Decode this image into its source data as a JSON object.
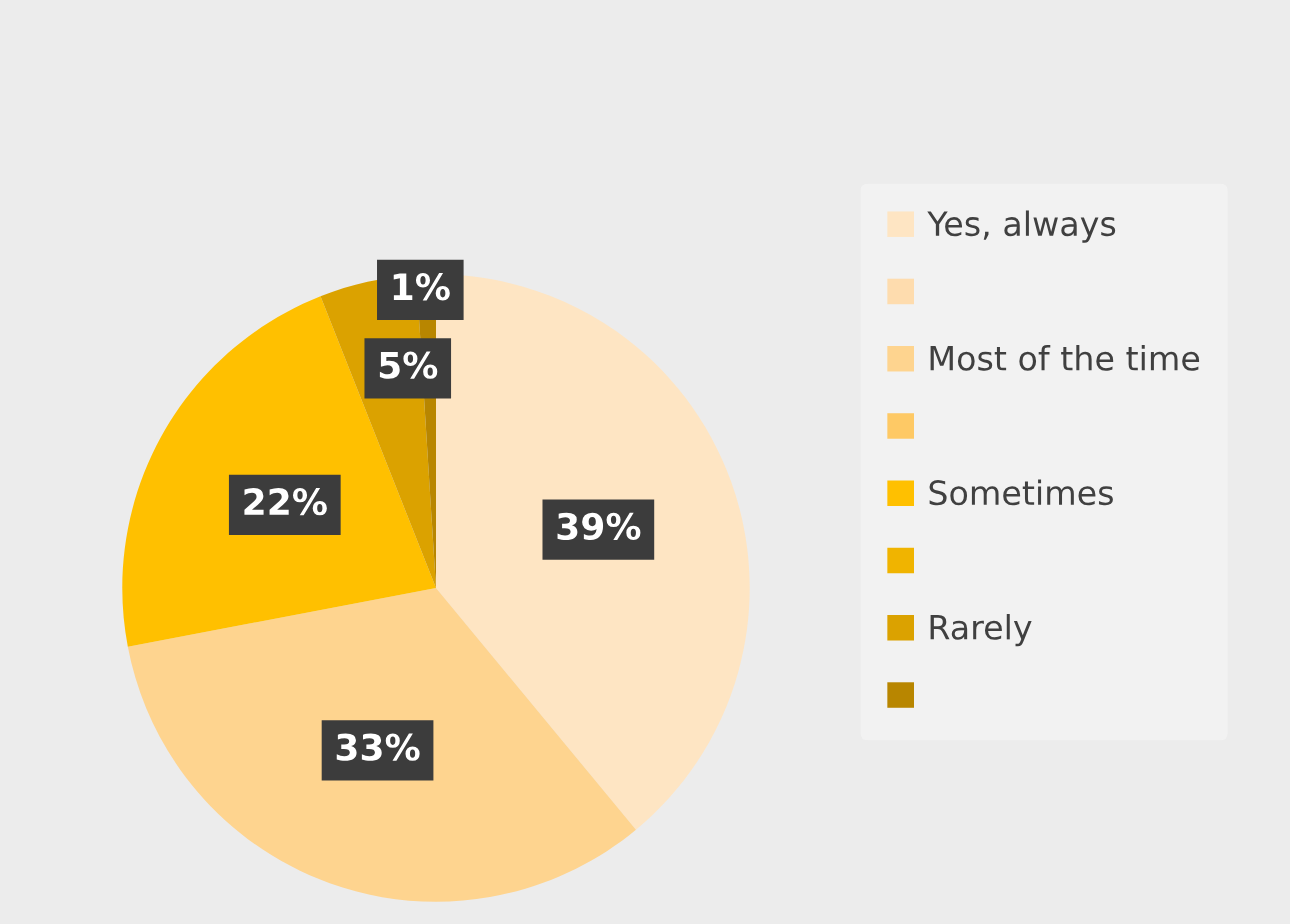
{
  "chart_data": {
    "type": "pie",
    "categories": [
      "Yes, always",
      null,
      "Most of the time",
      null,
      "Sometimes",
      null,
      "Rarely",
      null
    ],
    "values": [
      39,
      0,
      33,
      0,
      22,
      0,
      5,
      1
    ],
    "colors": [
      "#fee5c3",
      "#fedcae",
      "#fed48f",
      "#fec965",
      "#ffc000",
      "#f0b400",
      "#dba200",
      "#b88600"
    ],
    "value_labels": [
      "39%",
      null,
      "33%",
      null,
      "22%",
      null,
      "5%",
      "1%"
    ],
    "legend": "right"
  }
}
